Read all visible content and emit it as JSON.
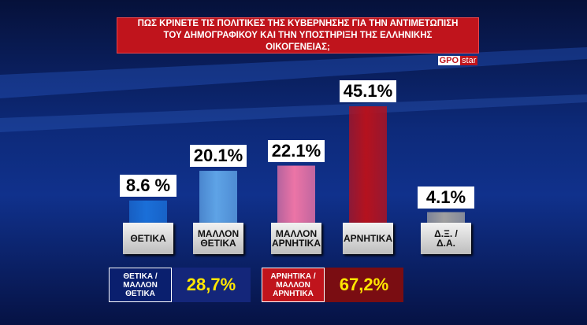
{
  "chart_data": {
    "type": "bar",
    "title": "ΠΩΣ ΚΡΙΝΕΤΕ ΤΙΣ ΠΟΛΙΤΙΚΕΣ ΤΗΣ ΚΥΒΕΡΝΗΣΗΣ ΓΙΑ ΤΗΝ ΑΝΤΙΜΕΤΩΠΙΣΗ ΤΟΥ ΔΗΜΟΓΡΑΦΙΚΟΥ ΚΑΙ ΤΗΝ ΥΠΟΣΤΗΡΙΞΗ ΤΗΣ ΕΛΛΗΝΙΚΗΣ ΟΙΚΟΓΕΝΕΙΑΣ;",
    "categories": [
      "ΘΕΤΙΚΑ",
      "ΜΑΛΛΟΝ ΘΕΤΙΚΑ",
      "ΜΑΛΛΟΝ ΑΡΝΗΤΙΚΑ",
      "ΑΡΝΗΤΙΚΑ",
      "Δ.Ξ. / Δ.Α."
    ],
    "values": [
      8.6,
      20.1,
      22.1,
      45.1,
      4.1
    ],
    "value_labels": [
      "8.6 %",
      "20.1%",
      "22.1%",
      "45.1%",
      "4.1%"
    ],
    "colors": [
      "#1a6fd8",
      "#5ea3e6",
      "#ec74a6",
      "#b5121e",
      "#a0a0a0"
    ],
    "ylim": [
      0,
      50
    ]
  },
  "summary": [
    {
      "label": "ΘΕΤΙΚΑ / ΜΑΛΛΟΝ ΘΕΤΙΚΑ",
      "value_label": "28,7%"
    },
    {
      "label": "ΑΡΝΗΤΙΚΑ / ΜΑΛΛΟΝ ΑΡΝΗΤΙΚΑ",
      "value_label": "67,2%"
    }
  ],
  "logo": {
    "brand": "GPO",
    "channel": "star"
  }
}
